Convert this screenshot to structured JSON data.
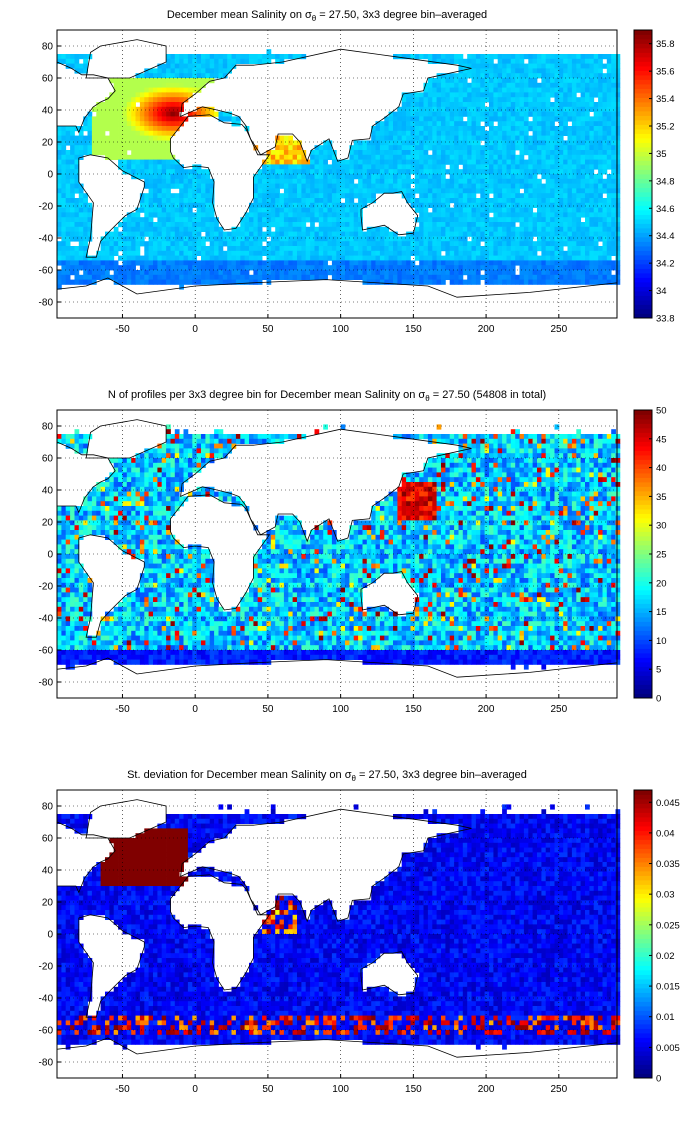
{
  "chart_data": [
    {
      "type": "heatmap",
      "title_prefix": "December mean Salinity on ",
      "title_sub": "θ",
      "title_suffix": " = 27.50, 3x3 degree bin–averaged",
      "x_ticks": [
        -50,
        0,
        50,
        100,
        150,
        200,
        250
      ],
      "y_ticks": [
        80,
        60,
        40,
        20,
        0,
        -20,
        -40,
        -60,
        -80
      ],
      "xlim": [
        -95,
        290
      ],
      "ylim": [
        -90,
        90
      ],
      "grid": true,
      "colorbar": {
        "min": 33.8,
        "max": 35.9,
        "ticks": [
          35.8,
          35.6,
          35.4,
          35.2,
          35,
          34.8,
          34.6,
          34.4,
          34.2,
          34,
          33.8
        ]
      },
      "field": "salinity",
      "colormap": "jet"
    },
    {
      "type": "heatmap",
      "title_prefix": "N of profiles per 3x3 degree bin for December mean Salinity on ",
      "title_sub": "θ",
      "title_suffix": " = 27.50 (54808 in total)",
      "x_ticks": [
        -50,
        0,
        50,
        100,
        150,
        200,
        250
      ],
      "y_ticks": [
        80,
        60,
        40,
        20,
        0,
        -20,
        -40,
        -60,
        -80
      ],
      "xlim": [
        -95,
        290
      ],
      "ylim": [
        -90,
        90
      ],
      "grid": true,
      "colorbar": {
        "min": 0,
        "max": 50,
        "ticks": [
          50,
          45,
          40,
          35,
          30,
          25,
          20,
          15,
          10,
          5,
          0
        ]
      },
      "field": "count",
      "colormap": "jet"
    },
    {
      "type": "heatmap",
      "title_prefix": "St. deviation for December mean Salinity on ",
      "title_sub": "θ",
      "title_suffix": " = 27.50, 3x3 degree bin–averaged",
      "x_ticks": [
        -50,
        0,
        50,
        100,
        150,
        200,
        250
      ],
      "y_ticks": [
        80,
        60,
        40,
        20,
        0,
        -20,
        -40,
        -60,
        -80
      ],
      "xlim": [
        -95,
        290
      ],
      "ylim": [
        -90,
        90
      ],
      "grid": true,
      "colorbar": {
        "min": 0,
        "max": 0.047,
        "ticks": [
          0.045,
          0.04,
          0.035,
          0.03,
          0.025,
          0.02,
          0.015,
          0.01,
          0.005,
          0
        ]
      },
      "field": "stdev",
      "colormap": "jet"
    }
  ]
}
